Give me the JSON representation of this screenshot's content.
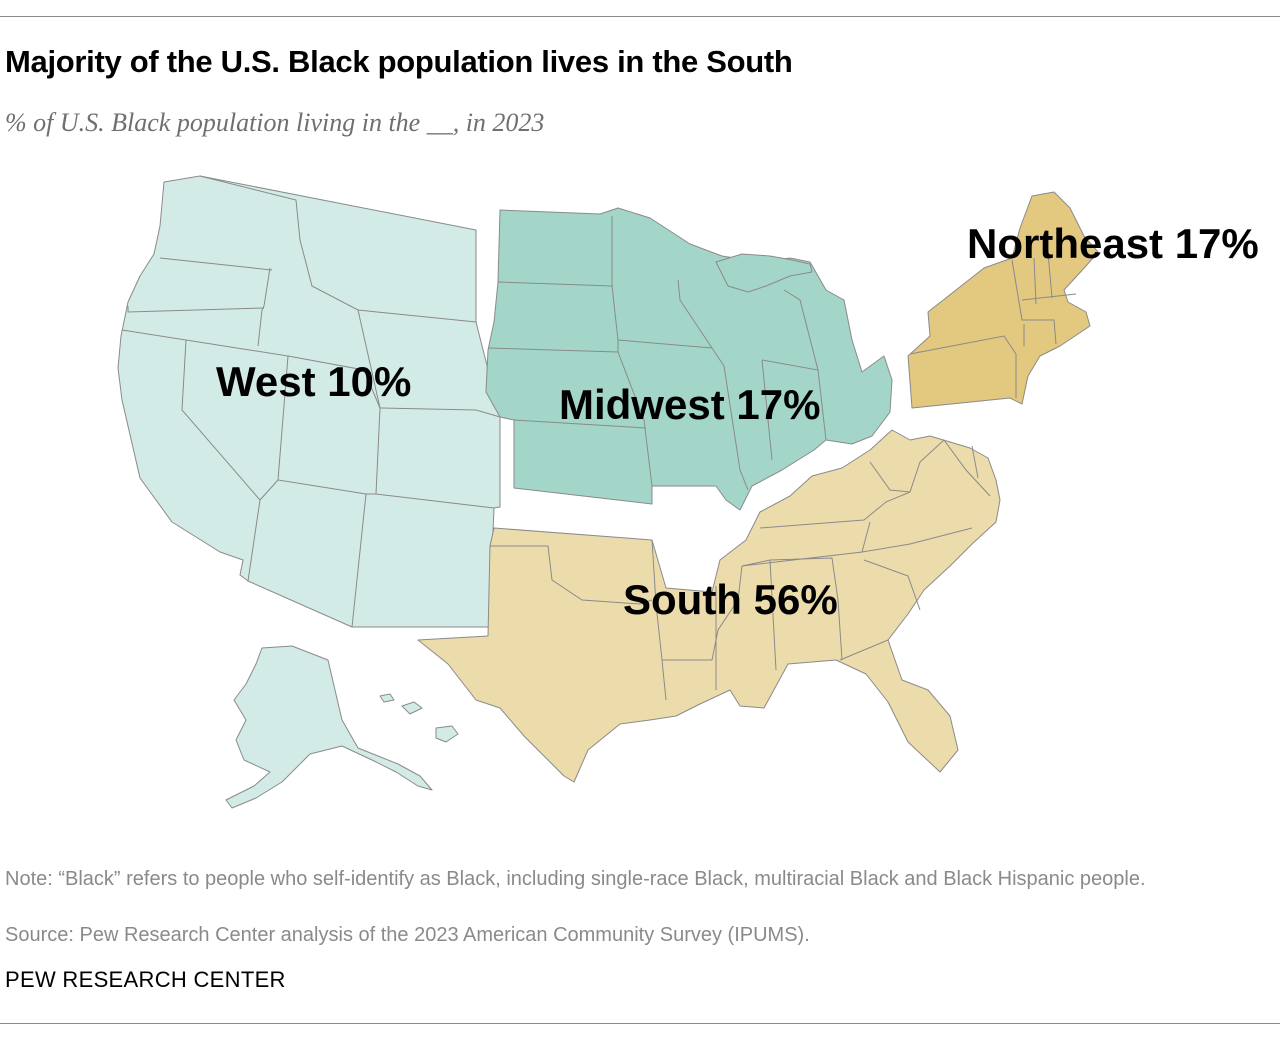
{
  "title": "Majority of the U.S. Black population lives in the South",
  "subtitle": "% of U.S. Black population living in the __, in 2023",
  "map": {
    "regions": [
      {
        "name": "West",
        "value": 10,
        "label": "West 10%",
        "color": "#d3ebe6"
      },
      {
        "name": "Midwest",
        "value": 17,
        "label": "Midwest 17%",
        "color": "#a3d6c9"
      },
      {
        "name": "Northeast",
        "value": 17,
        "label": "Northeast 17%",
        "color": "#e3c880"
      },
      {
        "name": "South",
        "value": 56,
        "label": "South 56%",
        "color": "#eddcab"
      }
    ]
  },
  "note": "Note: “Black” refers to people who self-identify as Black, including single-race Black, multiracial Black and Black Hispanic people.",
  "source": "Source: Pew Research Center analysis of the 2023 American Community Survey (IPUMS).",
  "credit": "PEW RESEARCH CENTER"
}
